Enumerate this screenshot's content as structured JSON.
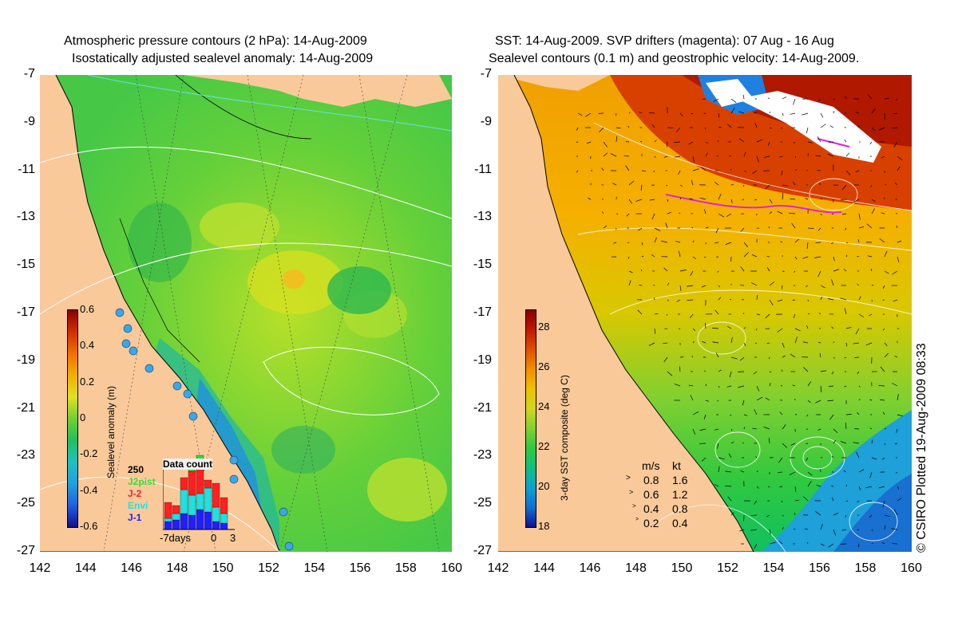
{
  "left_panel": {
    "title_line1": "Atmospheric pressure contours (2 hPa): 14-Aug-2009",
    "title_line2": "Isostatically adjusted sealevel anomaly: 14-Aug-2009",
    "colorbar": {
      "title": "Sealevel anomaly (m)",
      "ticks": [
        "0.6",
        "0.4",
        "0.2",
        "0",
        "-0.2",
        "-0.4",
        "-0.6"
      ]
    },
    "data_count": {
      "title": "Data count",
      "max": "250",
      "series": [
        "J2pist",
        "J-2",
        "Envi",
        "J-1"
      ],
      "series_colors": [
        "#33dd33",
        "#ff2020",
        "#20e0e0",
        "#2020ff"
      ],
      "x_left": "-7days",
      "x_mid": "0",
      "x_right": "3"
    }
  },
  "right_panel": {
    "title_line1": "SST: 14-Aug-2009. SVP drifters (magenta): 07 Aug - 16 Aug",
    "title_line2": "Sealevel contours (0.1 m) and geostrophic velocity: 14-Aug-2009.",
    "colorbar": {
      "title": "3-day SST composite (deg C)",
      "ticks": [
        "28",
        "26",
        "24",
        "22",
        "20",
        "18"
      ]
    },
    "velocity_legend": {
      "header_ms": "m/s",
      "header_kt": "kt",
      "rows": [
        {
          "ms": "0.8",
          "kt": "1.6"
        },
        {
          "ms": "0.6",
          "kt": "1.2"
        },
        {
          "ms": "0.4",
          "kt": "0.8"
        },
        {
          "ms": "0.2",
          "kt": "0.4"
        }
      ]
    }
  },
  "axes": {
    "lat_ticks": [
      "-7",
      "-9",
      "-11",
      "-13",
      "-15",
      "-17",
      "-19",
      "-21",
      "-23",
      "-25",
      "-27"
    ],
    "lon_ticks": [
      "142",
      "144",
      "146",
      "148",
      "150",
      "152",
      "154",
      "156",
      "158",
      "160"
    ]
  },
  "credit": "© CSIRO Plotted 19-Aug-2009 08:33",
  "colors": {
    "land": "#f9c99a",
    "sla_green": "#3cc83c",
    "sst_orange": "#f5a800",
    "sst_red": "#c01a00"
  }
}
